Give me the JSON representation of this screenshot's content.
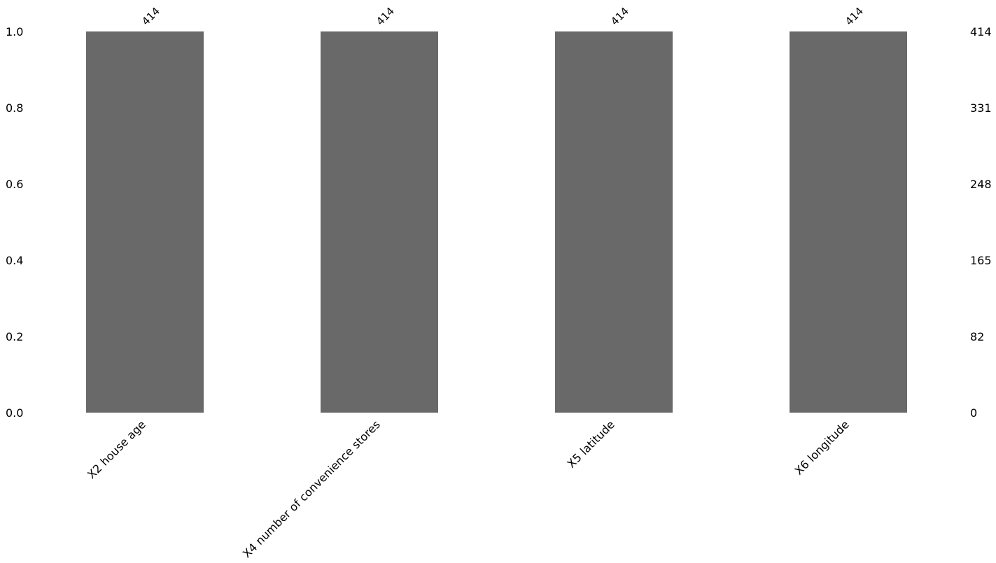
{
  "chart_data": {
    "type": "bar",
    "categories": [
      "X2 house age",
      "X4 number of convenience stores",
      "X5 latitude",
      "X6 longitude"
    ],
    "values": [
      1.0,
      1.0,
      1.0,
      1.0
    ],
    "counts": [
      "414",
      "414",
      "414",
      "414"
    ],
    "ylim": [
      0,
      1.0
    ],
    "left_ticks": [
      "0.0",
      "0.2",
      "0.4",
      "0.6",
      "0.8",
      "1.0"
    ],
    "right_ticks": [
      "0",
      "82",
      "165",
      "248",
      "331",
      "414"
    ],
    "bar_color": "#696969",
    "grid": false,
    "title": "",
    "xlabel": "",
    "ylabel": ""
  }
}
